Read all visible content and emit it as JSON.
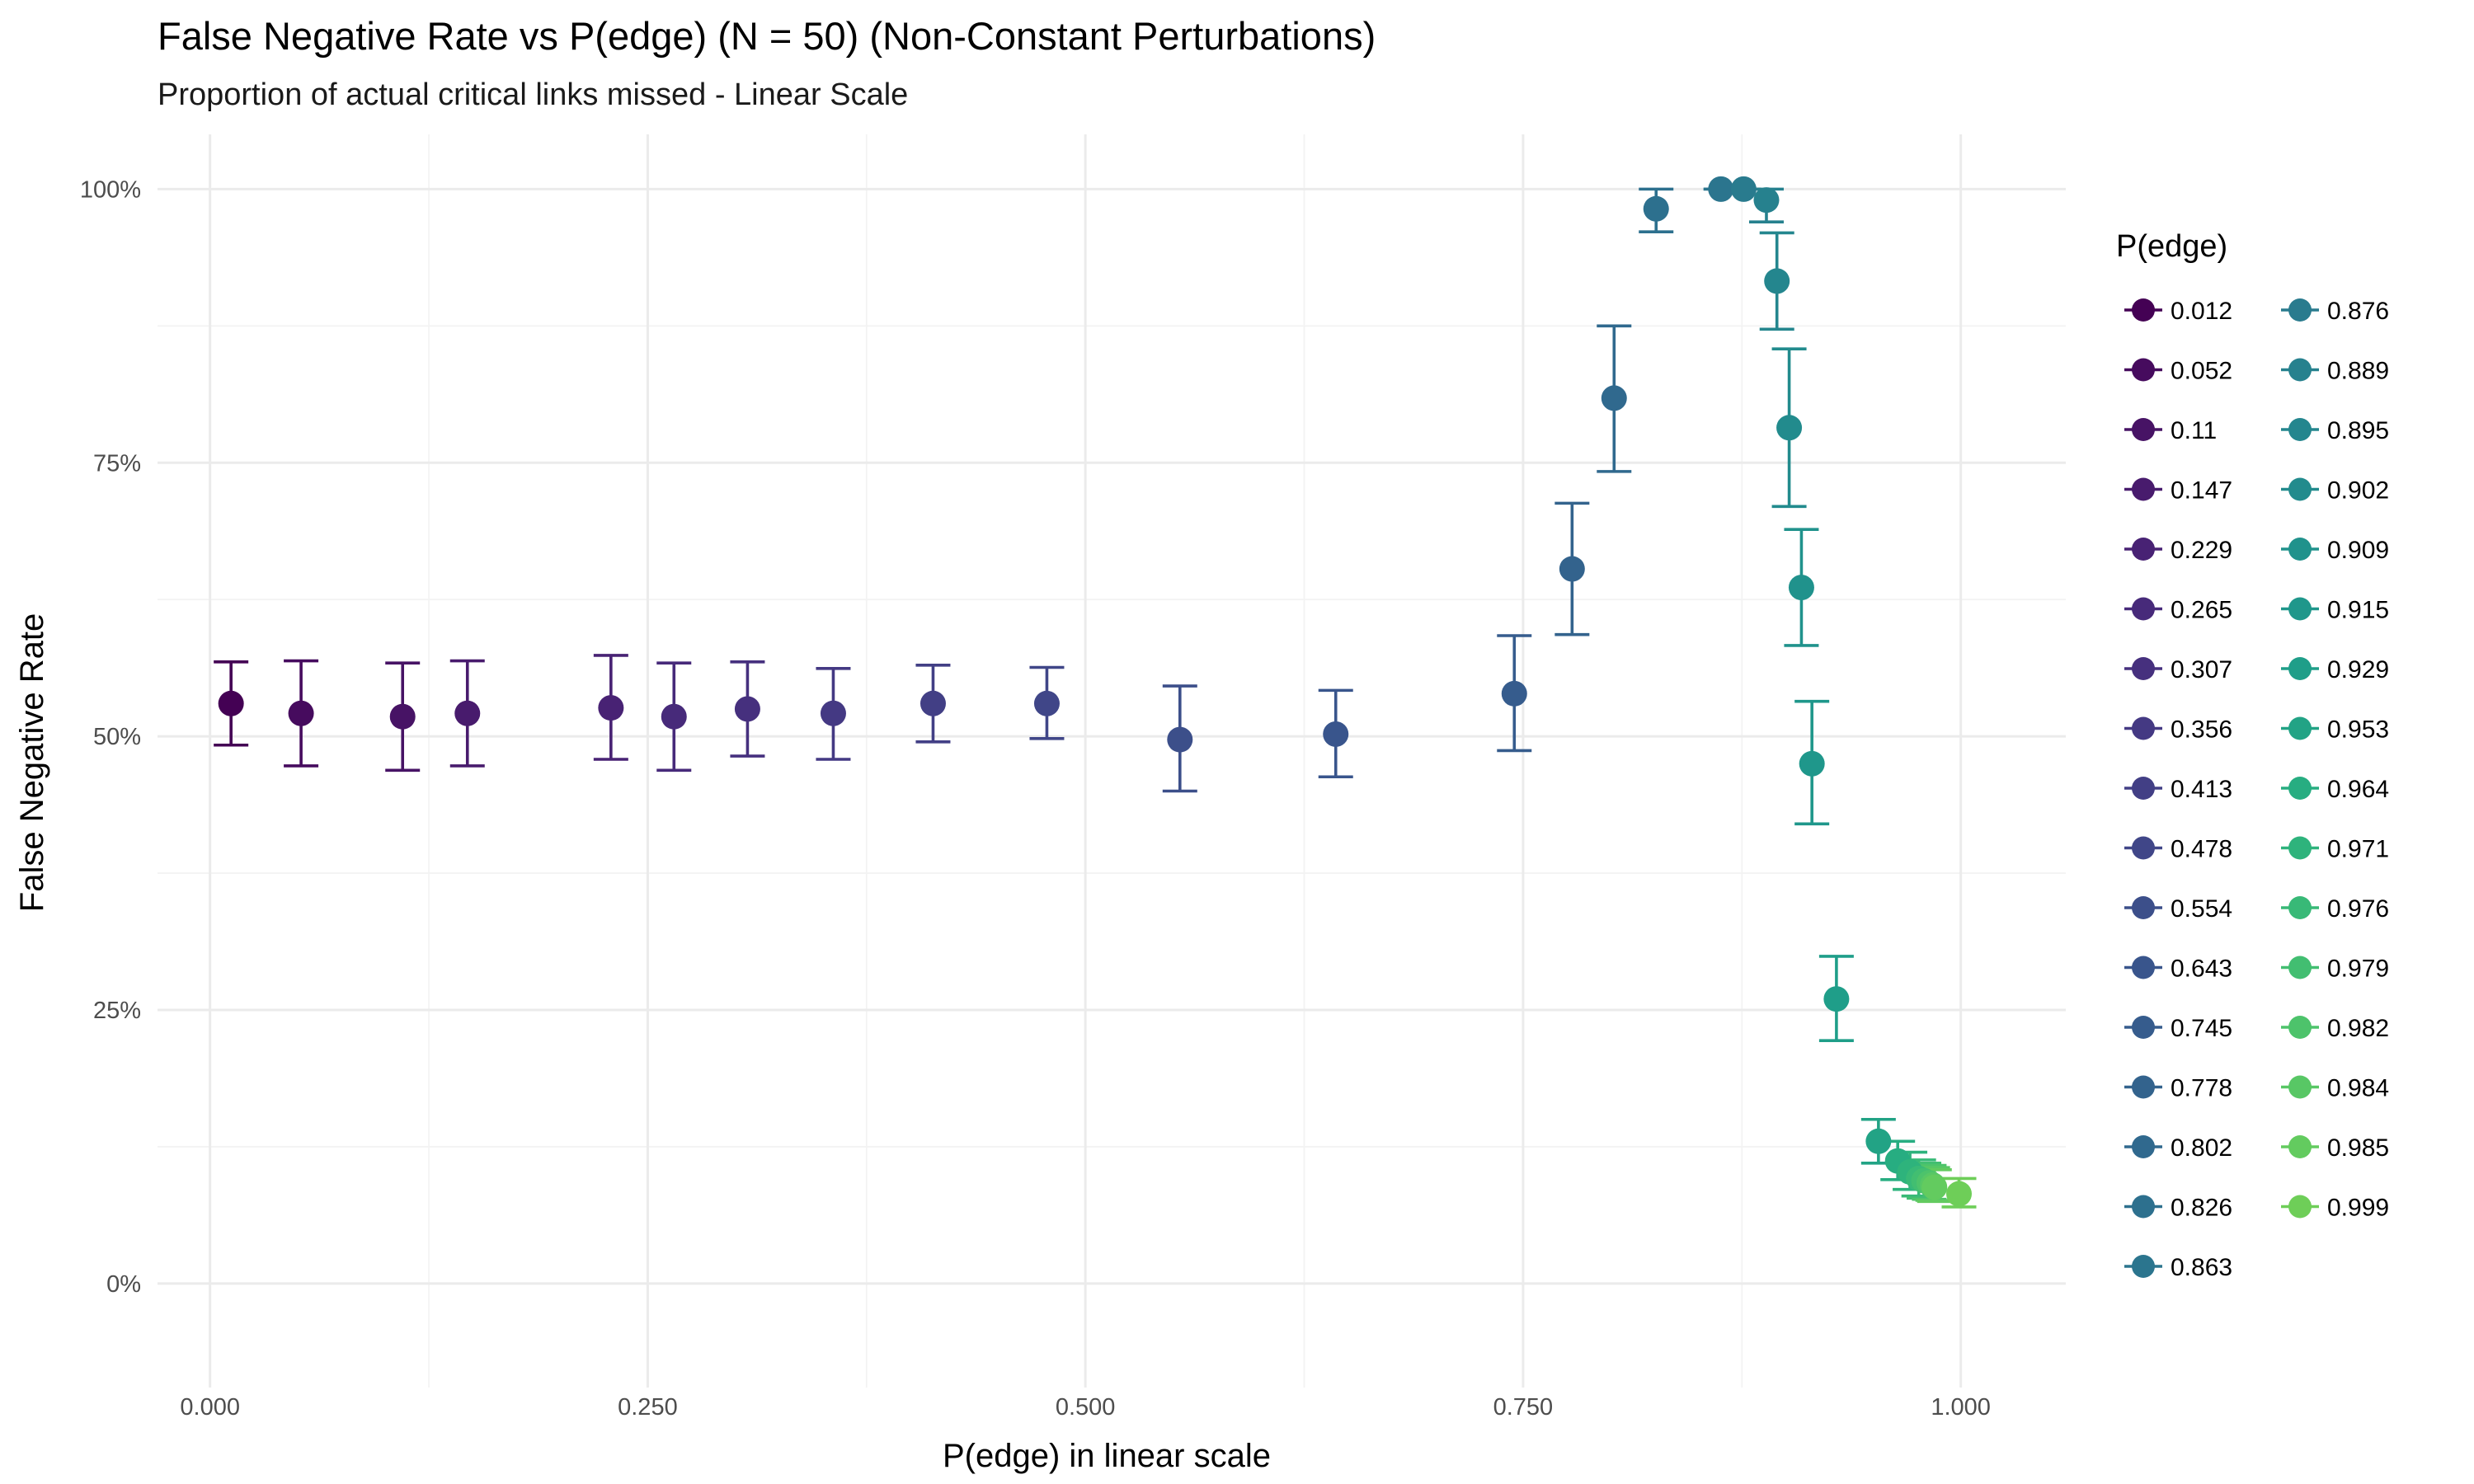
{
  "chart_data": {
    "type": "scatter",
    "title": "False Negative Rate vs P(edge) (N = 50) (Non-Constant Perturbations)",
    "subtitle": "Proportion of actual critical links missed - Linear Scale",
    "xlabel": "P(edge) in linear scale",
    "ylabel": "False Negative Rate",
    "xlim": [
      -0.03,
      1.06
    ],
    "ylim": [
      -0.095,
      1.05
    ],
    "x_ticks": [
      {
        "value": 0.0,
        "label": "0.000"
      },
      {
        "value": 0.25,
        "label": "0.250"
      },
      {
        "value": 0.5,
        "label": "0.500"
      },
      {
        "value": 0.75,
        "label": "0.750"
      },
      {
        "value": 1.0,
        "label": "1.000"
      }
    ],
    "y_ticks": [
      {
        "value": 0.0,
        "label": "0%"
      },
      {
        "value": 0.25,
        "label": "25%"
      },
      {
        "value": 0.5,
        "label": "50%"
      },
      {
        "value": 0.75,
        "label": "75%"
      },
      {
        "value": 1.0,
        "label": "100%"
      }
    ],
    "grid": true,
    "error_bars": true,
    "legend": {
      "title": "P(edge)",
      "placement": "right",
      "columns": 2
    },
    "series": [
      {
        "name": "0.012",
        "x": 0.012,
        "y": 0.53,
        "ymin": 0.492,
        "ymax": 0.568,
        "color": "#440154"
      },
      {
        "name": "0.052",
        "x": 0.052,
        "y": 0.521,
        "ymin": 0.473,
        "ymax": 0.569,
        "color": "#460B5E"
      },
      {
        "name": "0.11",
        "x": 0.11,
        "y": 0.518,
        "ymin": 0.469,
        "ymax": 0.567,
        "color": "#471365"
      },
      {
        "name": "0.147",
        "x": 0.147,
        "y": 0.521,
        "ymin": 0.473,
        "ymax": 0.569,
        "color": "#481B6D"
      },
      {
        "name": "0.229",
        "x": 0.229,
        "y": 0.526,
        "ymin": 0.479,
        "ymax": 0.574,
        "color": "#482274"
      },
      {
        "name": "0.265",
        "x": 0.265,
        "y": 0.518,
        "ymin": 0.469,
        "ymax": 0.567,
        "color": "#472A7A"
      },
      {
        "name": "0.307",
        "x": 0.307,
        "y": 0.525,
        "ymin": 0.482,
        "ymax": 0.568,
        "color": "#46307E"
      },
      {
        "name": "0.356",
        "x": 0.356,
        "y": 0.521,
        "ymin": 0.479,
        "ymax": 0.562,
        "color": "#443983"
      },
      {
        "name": "0.413",
        "x": 0.413,
        "y": 0.53,
        "ymin": 0.495,
        "ymax": 0.565,
        "color": "#423F85"
      },
      {
        "name": "0.478",
        "x": 0.478,
        "y": 0.53,
        "ymin": 0.498,
        "ymax": 0.563,
        "color": "#404688"
      },
      {
        "name": "0.554",
        "x": 0.554,
        "y": 0.497,
        "ymin": 0.45,
        "ymax": 0.546,
        "color": "#3C4F8A"
      },
      {
        "name": "0.643",
        "x": 0.643,
        "y": 0.502,
        "ymin": 0.463,
        "ymax": 0.542,
        "color": "#39558C"
      },
      {
        "name": "0.745",
        "x": 0.745,
        "y": 0.539,
        "ymin": 0.487,
        "ymax": 0.592,
        "color": "#365C8D"
      },
      {
        "name": "0.778",
        "x": 0.778,
        "y": 0.653,
        "ymin": 0.593,
        "ymax": 0.713,
        "color": "#33638D"
      },
      {
        "name": "0.802",
        "x": 0.802,
        "y": 0.809,
        "ymin": 0.742,
        "ymax": 0.875,
        "color": "#30698E"
      },
      {
        "name": "0.826",
        "x": 0.826,
        "y": 0.982,
        "ymin": 0.961,
        "ymax": 1.0,
        "color": "#2D708E"
      },
      {
        "name": "0.863",
        "x": 0.863,
        "y": 1.0,
        "ymin": 1.0,
        "ymax": 1.0,
        "color": "#2B758E"
      },
      {
        "name": "0.876",
        "x": 0.876,
        "y": 1.0,
        "ymin": 1.0,
        "ymax": 1.0,
        "color": "#297B8E"
      },
      {
        "name": "0.889",
        "x": 0.889,
        "y": 0.99,
        "ymin": 0.97,
        "ymax": 1.0,
        "color": "#26818E"
      },
      {
        "name": "0.895",
        "x": 0.895,
        "y": 0.916,
        "ymin": 0.872,
        "ymax": 0.96,
        "color": "#24868E"
      },
      {
        "name": "0.902",
        "x": 0.902,
        "y": 0.782,
        "ymin": 0.71,
        "ymax": 0.854,
        "color": "#228B8D"
      },
      {
        "name": "0.909",
        "x": 0.909,
        "y": 0.636,
        "ymin": 0.583,
        "ymax": 0.689,
        "color": "#20928C"
      },
      {
        "name": "0.915",
        "x": 0.915,
        "y": 0.475,
        "ymin": 0.42,
        "ymax": 0.532,
        "color": "#1F978B"
      },
      {
        "name": "0.929",
        "x": 0.929,
        "y": 0.26,
        "ymin": 0.222,
        "ymax": 0.299,
        "color": "#1F9E89"
      },
      {
        "name": "0.953",
        "x": 0.953,
        "y": 0.13,
        "ymin": 0.11,
        "ymax": 0.15,
        "color": "#22A385"
      },
      {
        "name": "0.964",
        "x": 0.964,
        "y": 0.112,
        "ymin": 0.095,
        "ymax": 0.13,
        "color": "#27AD81"
      },
      {
        "name": "0.971",
        "x": 0.971,
        "y": 0.102,
        "ymin": 0.086,
        "ymax": 0.12,
        "color": "#2EB37C"
      },
      {
        "name": "0.976",
        "x": 0.976,
        "y": 0.096,
        "ymin": 0.08,
        "ymax": 0.113,
        "color": "#38B977"
      },
      {
        "name": "0.979",
        "x": 0.979,
        "y": 0.094,
        "ymin": 0.078,
        "ymax": 0.11,
        "color": "#42BE71"
      },
      {
        "name": "0.982",
        "x": 0.982,
        "y": 0.092,
        "ymin": 0.077,
        "ymax": 0.108,
        "color": "#4DC36B"
      },
      {
        "name": "0.984",
        "x": 0.984,
        "y": 0.09,
        "ymin": 0.076,
        "ymax": 0.106,
        "color": "#58C765"
      },
      {
        "name": "0.985",
        "x": 0.985,
        "y": 0.088,
        "ymin": 0.075,
        "ymax": 0.104,
        "color": "#63CB5F"
      },
      {
        "name": "0.999",
        "x": 0.999,
        "y": 0.082,
        "ymin": 0.07,
        "ymax": 0.096,
        "color": "#6ECE58"
      }
    ]
  }
}
